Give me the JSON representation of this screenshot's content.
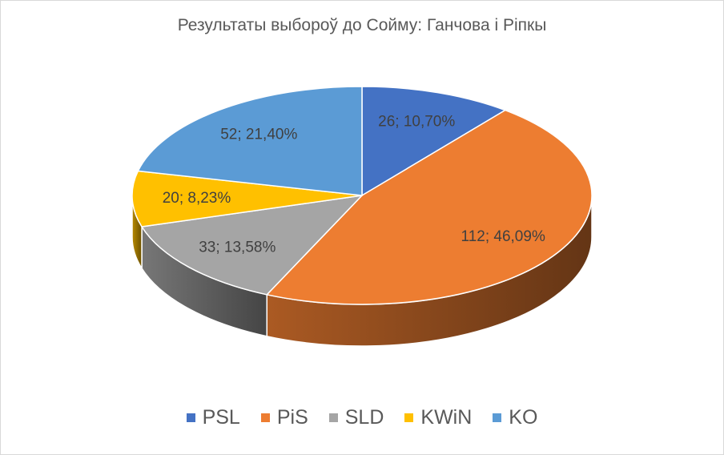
{
  "chart_data": {
    "type": "pie",
    "title": "Результаты выбороў до Сойму: Ганчова і Ріпкы",
    "categories": [
      "PSL",
      "PiS",
      "SLD",
      "KWiN",
      "KO"
    ],
    "values": [
      26,
      112,
      33,
      20,
      52
    ],
    "percent_labels": [
      "10,70%",
      "46,09%",
      "13,58%",
      "8,23%",
      "21,40%"
    ],
    "colors": [
      "#4472C4",
      "#ED7D31",
      "#A5A5A5",
      "#FFC000",
      "#5B9BD5"
    ],
    "data_labels": [
      "26; 10,70%",
      "112; 46,09%",
      "33; 13,58%",
      "20; 8,23%",
      "52; 21,40%"
    ],
    "style": "3d",
    "legend": "bottom"
  }
}
